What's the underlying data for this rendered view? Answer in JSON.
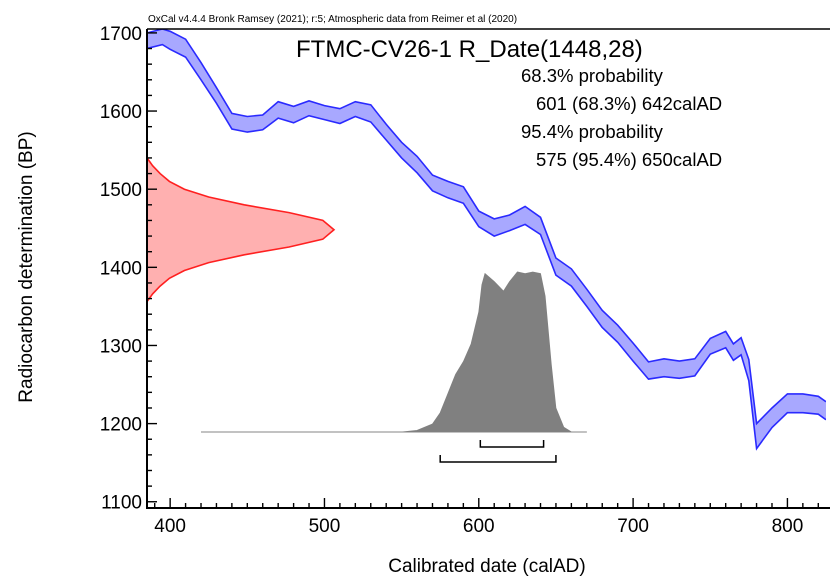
{
  "chart_data": {
    "type": "area",
    "header": "OxCal v4.4.4 Bronk Ramsey (2021); r:5; Atmospheric data from Reimer et al (2020)",
    "title": "FTMC-CV26-1 R_Date(1448,28)",
    "xlabel": "Calibrated date (calAD)",
    "ylabel": "Radiocarbon determination (BP)",
    "xlim": [
      385,
      825
    ],
    "ylim": [
      1092,
      1705
    ],
    "x_ticks": [
      400,
      500,
      600,
      700,
      800
    ],
    "y_ticks": [
      1100,
      1200,
      1300,
      1400,
      1500,
      1600,
      1700
    ],
    "grid": false,
    "probability": {
      "p68_label": "68.3% probability",
      "p68_range": "601 (68.3%) 642calAD",
      "p95_label": "95.4% probability",
      "p95_range": "575 (95.4%) 650calAD"
    },
    "ranges": [
      {
        "level": "68.3%",
        "from": 601,
        "to": 642
      },
      {
        "level": "95.4%",
        "from": 575,
        "to": 650
      }
    ],
    "measurement": {
      "mean_bp": 1448,
      "error_bp": 28
    },
    "calibration_curve": {
      "color": "#2a2aff",
      "fill": "#a8a8ff",
      "x": [
        385,
        395,
        400,
        410,
        420,
        430,
        440,
        450,
        460,
        470,
        480,
        490,
        500,
        510,
        520,
        530,
        540,
        550,
        560,
        570,
        580,
        590,
        600,
        610,
        620,
        630,
        640,
        650,
        660,
        670,
        680,
        690,
        700,
        710,
        720,
        730,
        740,
        750,
        760,
        765,
        770,
        775,
        780,
        790,
        800,
        810,
        820,
        825
      ],
      "upper": [
        1700,
        1705,
        1702,
        1692,
        1662,
        1630,
        1597,
        1593,
        1595,
        1612,
        1606,
        1613,
        1607,
        1603,
        1612,
        1608,
        1583,
        1560,
        1542,
        1518,
        1510,
        1503,
        1472,
        1462,
        1467,
        1478,
        1464,
        1412,
        1398,
        1372,
        1345,
        1326,
        1303,
        1279,
        1283,
        1280,
        1283,
        1309,
        1318,
        1302,
        1310,
        1282,
        1200,
        1220,
        1238,
        1238,
        1235,
        1228
      ],
      "lower": [
        1680,
        1685,
        1679,
        1669,
        1640,
        1610,
        1577,
        1573,
        1576,
        1591,
        1585,
        1594,
        1589,
        1584,
        1593,
        1586,
        1563,
        1540,
        1521,
        1498,
        1489,
        1482,
        1452,
        1440,
        1447,
        1455,
        1442,
        1390,
        1376,
        1350,
        1323,
        1304,
        1280,
        1257,
        1260,
        1258,
        1261,
        1289,
        1297,
        1281,
        1288,
        1255,
        1168,
        1195,
        1214,
        1214,
        1212,
        1205
      ]
    },
    "measurement_distribution": {
      "color": "#ff2020",
      "fill": "#ffb0b0",
      "bp": [
        1540,
        1530,
        1520,
        1510,
        1500,
        1490,
        1480,
        1470,
        1460,
        1448,
        1436,
        1426,
        1416,
        1406,
        1396,
        1386,
        1376,
        1366,
        1356
      ],
      "density": [
        0.0,
        0.03,
        0.07,
        0.12,
        0.2,
        0.33,
        0.52,
        0.76,
        0.94,
        1.0,
        0.94,
        0.76,
        0.52,
        0.33,
        0.2,
        0.12,
        0.07,
        0.03,
        0.0
      ]
    },
    "calibrated_distribution": {
      "color": "#808080",
      "x": [
        420,
        550,
        560,
        570,
        575,
        580,
        585,
        590,
        595,
        600,
        602,
        604,
        610,
        616,
        620,
        625,
        630,
        635,
        640,
        643,
        647,
        650,
        655,
        660,
        670
      ],
      "density": [
        0,
        0,
        0.01,
        0.05,
        0.12,
        0.24,
        0.36,
        0.44,
        0.55,
        0.75,
        0.92,
        0.99,
        0.94,
        0.88,
        0.94,
        1.0,
        0.99,
        1.0,
        0.99,
        0.85,
        0.42,
        0.15,
        0.03,
        0,
        0
      ]
    }
  }
}
